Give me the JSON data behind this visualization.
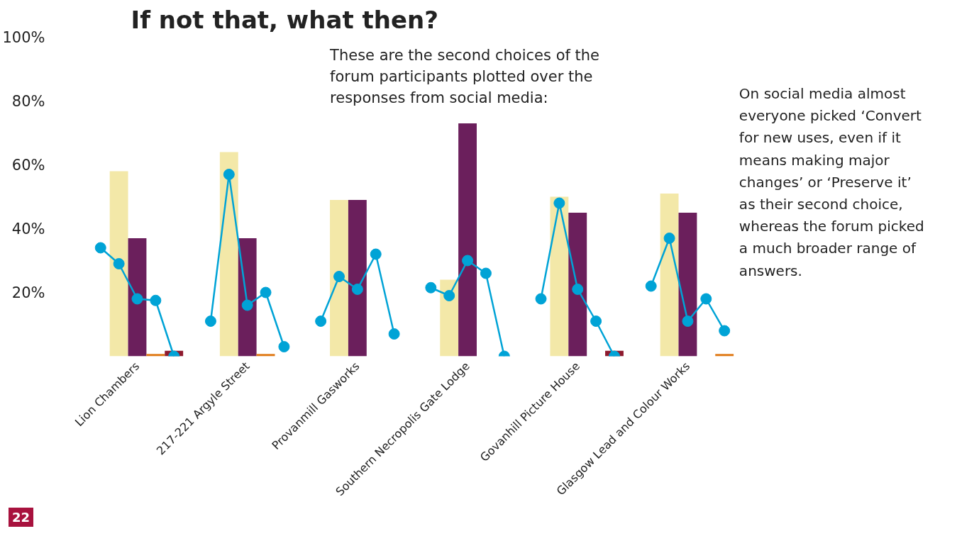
{
  "chart_data": {
    "type": "bar",
    "title": "If not that, what then?",
    "subtitle": "These are the second choices of the forum participants plotted over the responses from social media:",
    "categories": [
      null,
      null,
      "Lion Chambers",
      null,
      null,
      null,
      null,
      null,
      "217-221 Argyle Street",
      null,
      null,
      null,
      null,
      null,
      "Provanmill Gasworks",
      null,
      null,
      null,
      null,
      null,
      "Southern Necropolis Gate Lodge",
      null,
      null,
      null,
      null,
      null,
      "Govanhill Picture House",
      null,
      null,
      null,
      null,
      null,
      "Glasgow Lead and Colour Works",
      null,
      null,
      null
    ],
    "series": [
      {
        "color": "#f3e8a8",
        "values": [
          null,
          58,
          null,
          null,
          null,
          null,
          null,
          64,
          null,
          null,
          null,
          null,
          null,
          49,
          null,
          null,
          null,
          null,
          null,
          24,
          null,
          null,
          null,
          null,
          null,
          50,
          null,
          null,
          null,
          null,
          null,
          51,
          null,
          null,
          null,
          null
        ]
      },
      {
        "color": "#6b1f5c",
        "values": [
          null,
          null,
          37,
          null,
          null,
          null,
          null,
          null,
          37,
          null,
          null,
          null,
          null,
          null,
          49,
          null,
          null,
          null,
          null,
          null,
          73,
          null,
          null,
          null,
          null,
          null,
          45,
          null,
          null,
          null,
          null,
          null,
          45,
          null,
          null,
          null
        ]
      },
      {
        "color": "#e07b18",
        "values": [
          null,
          null,
          null,
          0.7,
          null,
          null,
          null,
          null,
          null,
          0.7,
          null,
          null,
          null,
          null,
          null,
          null,
          null,
          null,
          null,
          null,
          null,
          null,
          null,
          null,
          null,
          null,
          null,
          null,
          null,
          null,
          null,
          null,
          null,
          null,
          0.7,
          null
        ]
      },
      {
        "color": "#8e1a2e",
        "values": [
          null,
          null,
          null,
          null,
          1.7,
          null,
          null,
          null,
          null,
          null,
          null,
          null,
          null,
          null,
          null,
          null,
          null,
          null,
          null,
          null,
          null,
          null,
          null,
          null,
          null,
          null,
          null,
          null,
          1.7,
          null,
          null,
          null,
          null,
          null,
          null,
          null
        ]
      },
      {
        "type": "line",
        "color": "#00a3d6",
        "values": [
          34,
          29,
          18,
          17.5,
          0,
          null,
          null,
          null,
          null,
          null,
          null,
          null,
          null,
          null,
          null,
          null,
          null,
          null,
          null,
          null,
          null,
          null,
          null,
          null,
          null,
          null,
          null,
          null,
          null,
          null,
          null,
          null,
          null,
          null,
          null,
          null
        ]
      },
      {
        "type": "line",
        "color": "#00a3d6",
        "values": [
          null,
          null,
          null,
          null,
          null,
          null,
          11,
          57,
          16,
          20,
          3,
          null,
          null,
          null,
          null,
          null,
          null,
          null,
          null,
          null,
          null,
          null,
          null,
          null,
          null,
          null,
          null,
          null,
          null,
          null,
          null,
          null,
          null,
          null,
          null,
          null
        ]
      },
      {
        "type": "line",
        "color": "#00a3d6",
        "values": [
          null,
          null,
          null,
          null,
          null,
          null,
          null,
          null,
          null,
          null,
          null,
          null,
          11,
          25,
          21,
          32,
          7,
          null,
          null,
          null,
          null,
          null,
          null,
          null,
          null,
          null,
          null,
          null,
          null,
          null,
          null,
          null,
          null,
          null,
          null,
          null
        ]
      },
      {
        "type": "line",
        "color": "#00a3d6",
        "values": [
          null,
          null,
          null,
          null,
          null,
          null,
          null,
          null,
          null,
          null,
          null,
          null,
          null,
          null,
          null,
          null,
          null,
          null,
          21.5,
          19,
          30,
          26,
          0,
          null,
          null,
          null,
          null,
          null,
          null,
          null,
          null,
          null,
          null,
          null,
          null,
          null
        ]
      },
      {
        "type": "line",
        "color": "#00a3d6",
        "values": [
          null,
          null,
          null,
          null,
          null,
          null,
          null,
          null,
          null,
          null,
          null,
          null,
          null,
          null,
          null,
          null,
          null,
          null,
          null,
          null,
          null,
          null,
          null,
          null,
          18,
          48,
          21,
          11,
          0,
          null,
          null,
          null,
          null,
          null,
          null,
          null
        ]
      },
      {
        "type": "line",
        "color": "#00a3d6",
        "values": [
          null,
          null,
          null,
          null,
          null,
          null,
          null,
          null,
          null,
          null,
          null,
          null,
          null,
          null,
          null,
          null,
          null,
          null,
          null,
          null,
          null,
          null,
          null,
          null,
          null,
          null,
          null,
          null,
          null,
          null,
          22,
          37,
          11,
          18,
          8,
          null
        ]
      }
    ],
    "ylim": [
      0,
      100
    ],
    "yticks": [
      {
        "value": 20,
        "label": "20%"
      },
      {
        "value": 40,
        "label": "40%"
      },
      {
        "value": 60,
        "label": "60%"
      },
      {
        "value": 80,
        "label": "80%"
      },
      {
        "value": 100,
        "label": "100%"
      }
    ],
    "marker": "circle",
    "annotations": [
      "On social media almost everyone picked ‘Convert for new uses, even if it means making major changes’ or ‘Preserve it’ as their second choice, whereas the forum picked a much broader range of answers.",
      "22"
    ]
  }
}
